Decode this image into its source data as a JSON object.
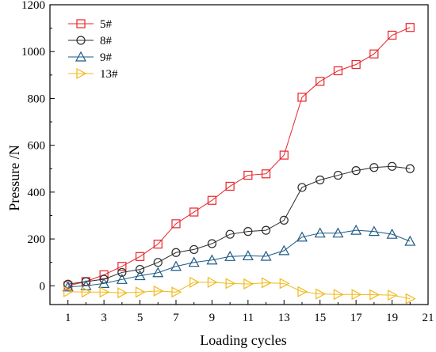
{
  "chart_data": {
    "type": "line",
    "xlabel": "Loading cycles",
    "ylabel": "Pressure /N",
    "xlim": [
      0,
      21
    ],
    "ylim": [
      -80,
      1200
    ],
    "xticks": [
      1,
      3,
      5,
      7,
      9,
      11,
      13,
      15,
      17,
      19,
      21
    ],
    "yticks": [
      0,
      200,
      400,
      600,
      800,
      1000,
      1200
    ],
    "x": [
      1,
      2,
      3,
      4,
      5,
      6,
      7,
      8,
      9,
      10,
      11,
      12,
      13,
      14,
      15,
      16,
      17,
      18,
      19,
      20
    ],
    "grid": false,
    "legend_position": "top-left",
    "series": [
      {
        "name": "5#",
        "marker": "square",
        "color": "#e8242a",
        "values": [
          0,
          18,
          47,
          83,
          125,
          178,
          265,
          315,
          365,
          425,
          472,
          478,
          558,
          805,
          873,
          918,
          945,
          990,
          1070,
          1103
        ]
      },
      {
        "name": "8#",
        "marker": "circle",
        "color": "#2b2b2b",
        "values": [
          7,
          18,
          28,
          57,
          70,
          100,
          142,
          155,
          180,
          220,
          232,
          237,
          280,
          420,
          452,
          472,
          492,
          505,
          510,
          500
        ]
      },
      {
        "name": "9#",
        "marker": "triangle-up",
        "color": "#1d5a84",
        "values": [
          -5,
          0,
          10,
          27,
          43,
          56,
          83,
          100,
          110,
          125,
          128,
          126,
          150,
          208,
          225,
          225,
          237,
          232,
          220,
          190
        ]
      },
      {
        "name": "13#",
        "marker": "triangle-right",
        "color": "#f2b81c",
        "values": [
          -25,
          -27,
          -27,
          -30,
          -27,
          -22,
          -27,
          15,
          15,
          10,
          8,
          13,
          10,
          -25,
          -35,
          -37,
          -37,
          -38,
          -40,
          -55
        ]
      }
    ]
  }
}
